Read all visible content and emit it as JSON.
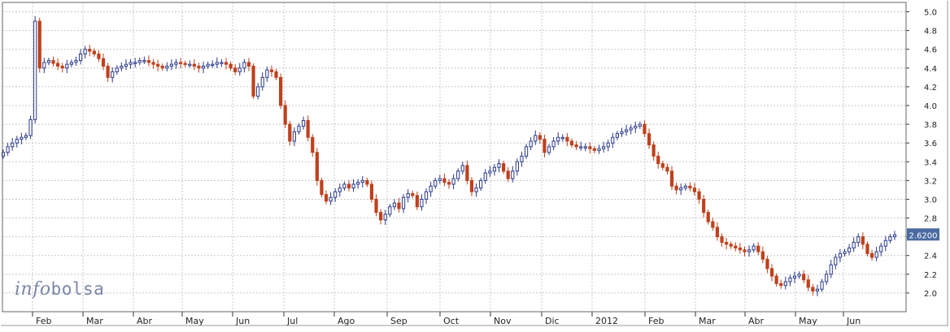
{
  "logo": {
    "part1": "info",
    "part2": "bolsa"
  },
  "chart_data": {
    "type": "candlestick",
    "title": "",
    "xlabel": "",
    "ylabel": "",
    "ylim": [
      1.8,
      5.1
    ],
    "y_ticks": [
      "2.0",
      "2.2",
      "2.4",
      "2.6",
      "2.8",
      "3.0",
      "3.2",
      "3.4",
      "3.6",
      "3.8",
      "4.0",
      "4.2",
      "4.4",
      "4.6",
      "4.8",
      "5.0"
    ],
    "x_month_labels": [
      "Feb",
      "Mar",
      "Abr",
      "May",
      "Jun",
      "Jul",
      "Ago",
      "Sep",
      "Oct",
      "Nov",
      "Dic",
      "2012",
      "Feb",
      "Mar",
      "Abr",
      "May",
      "Jun"
    ],
    "last_price_label": "2.6200",
    "grid": true,
    "colors": {
      "up": "#2b3a8c",
      "down": "#c0401c",
      "grid": "#c8c8c8",
      "price_tag": "#4a6aa0"
    },
    "series": [
      {
        "values": [
          3.5,
          3.56,
          3.6,
          3.64,
          3.66,
          3.68,
          3.85,
          4.9,
          4.4,
          4.46,
          4.48,
          4.45,
          4.42,
          4.4,
          4.44,
          4.46,
          4.48,
          4.55,
          4.6,
          4.58,
          4.55,
          4.5,
          4.42,
          4.3,
          4.36,
          4.4,
          4.42,
          4.44,
          4.46,
          4.46,
          4.48,
          4.48,
          4.46,
          4.44,
          4.42,
          4.4,
          4.42,
          4.44,
          4.46,
          4.45,
          4.44,
          4.44,
          4.42,
          4.4,
          4.42,
          4.44,
          4.44,
          4.46,
          4.46,
          4.44,
          4.4,
          4.36,
          4.4,
          4.46,
          4.42,
          4.1,
          4.2,
          4.3,
          4.38,
          4.36,
          4.3,
          4.0,
          3.8,
          3.62,
          3.72,
          3.78,
          3.84,
          3.66,
          3.5,
          3.2,
          3.05,
          2.98,
          3.02,
          3.08,
          3.12,
          3.16,
          3.12,
          3.16,
          3.18,
          3.2,
          3.16,
          3.0,
          2.86,
          2.78,
          2.84,
          2.92,
          2.96,
          2.9,
          3.02,
          3.06,
          3.04,
          2.92,
          3.0,
          3.08,
          3.14,
          3.2,
          3.22,
          3.18,
          3.16,
          3.22,
          3.3,
          3.36,
          3.2,
          3.08,
          3.12,
          3.2,
          3.28,
          3.3,
          3.34,
          3.38,
          3.3,
          3.22,
          3.3,
          3.4,
          3.46,
          3.56,
          3.62,
          3.68,
          3.64,
          3.5,
          3.56,
          3.62,
          3.66,
          3.66,
          3.62,
          3.58,
          3.56,
          3.56,
          3.56,
          3.54,
          3.52,
          3.54,
          3.56,
          3.6,
          3.66,
          3.7,
          3.72,
          3.74,
          3.76,
          3.78,
          3.8,
          3.7,
          3.58,
          3.46,
          3.38,
          3.34,
          3.3,
          3.14,
          3.1,
          3.12,
          3.14,
          3.12,
          3.08,
          3.0,
          2.86,
          2.76,
          2.7,
          2.6,
          2.54,
          2.52,
          2.5,
          2.48,
          2.46,
          2.44,
          2.46,
          2.5,
          2.44,
          2.36,
          2.26,
          2.18,
          2.1,
          2.08,
          2.12,
          2.16,
          2.18,
          2.2,
          2.14,
          2.06,
          2.02,
          2.04,
          2.12,
          2.2,
          2.3,
          2.38,
          2.42,
          2.44,
          2.48,
          2.54,
          2.6,
          2.52,
          2.42,
          2.38,
          2.44,
          2.5,
          2.56,
          2.6,
          2.62
        ]
      }
    ]
  }
}
